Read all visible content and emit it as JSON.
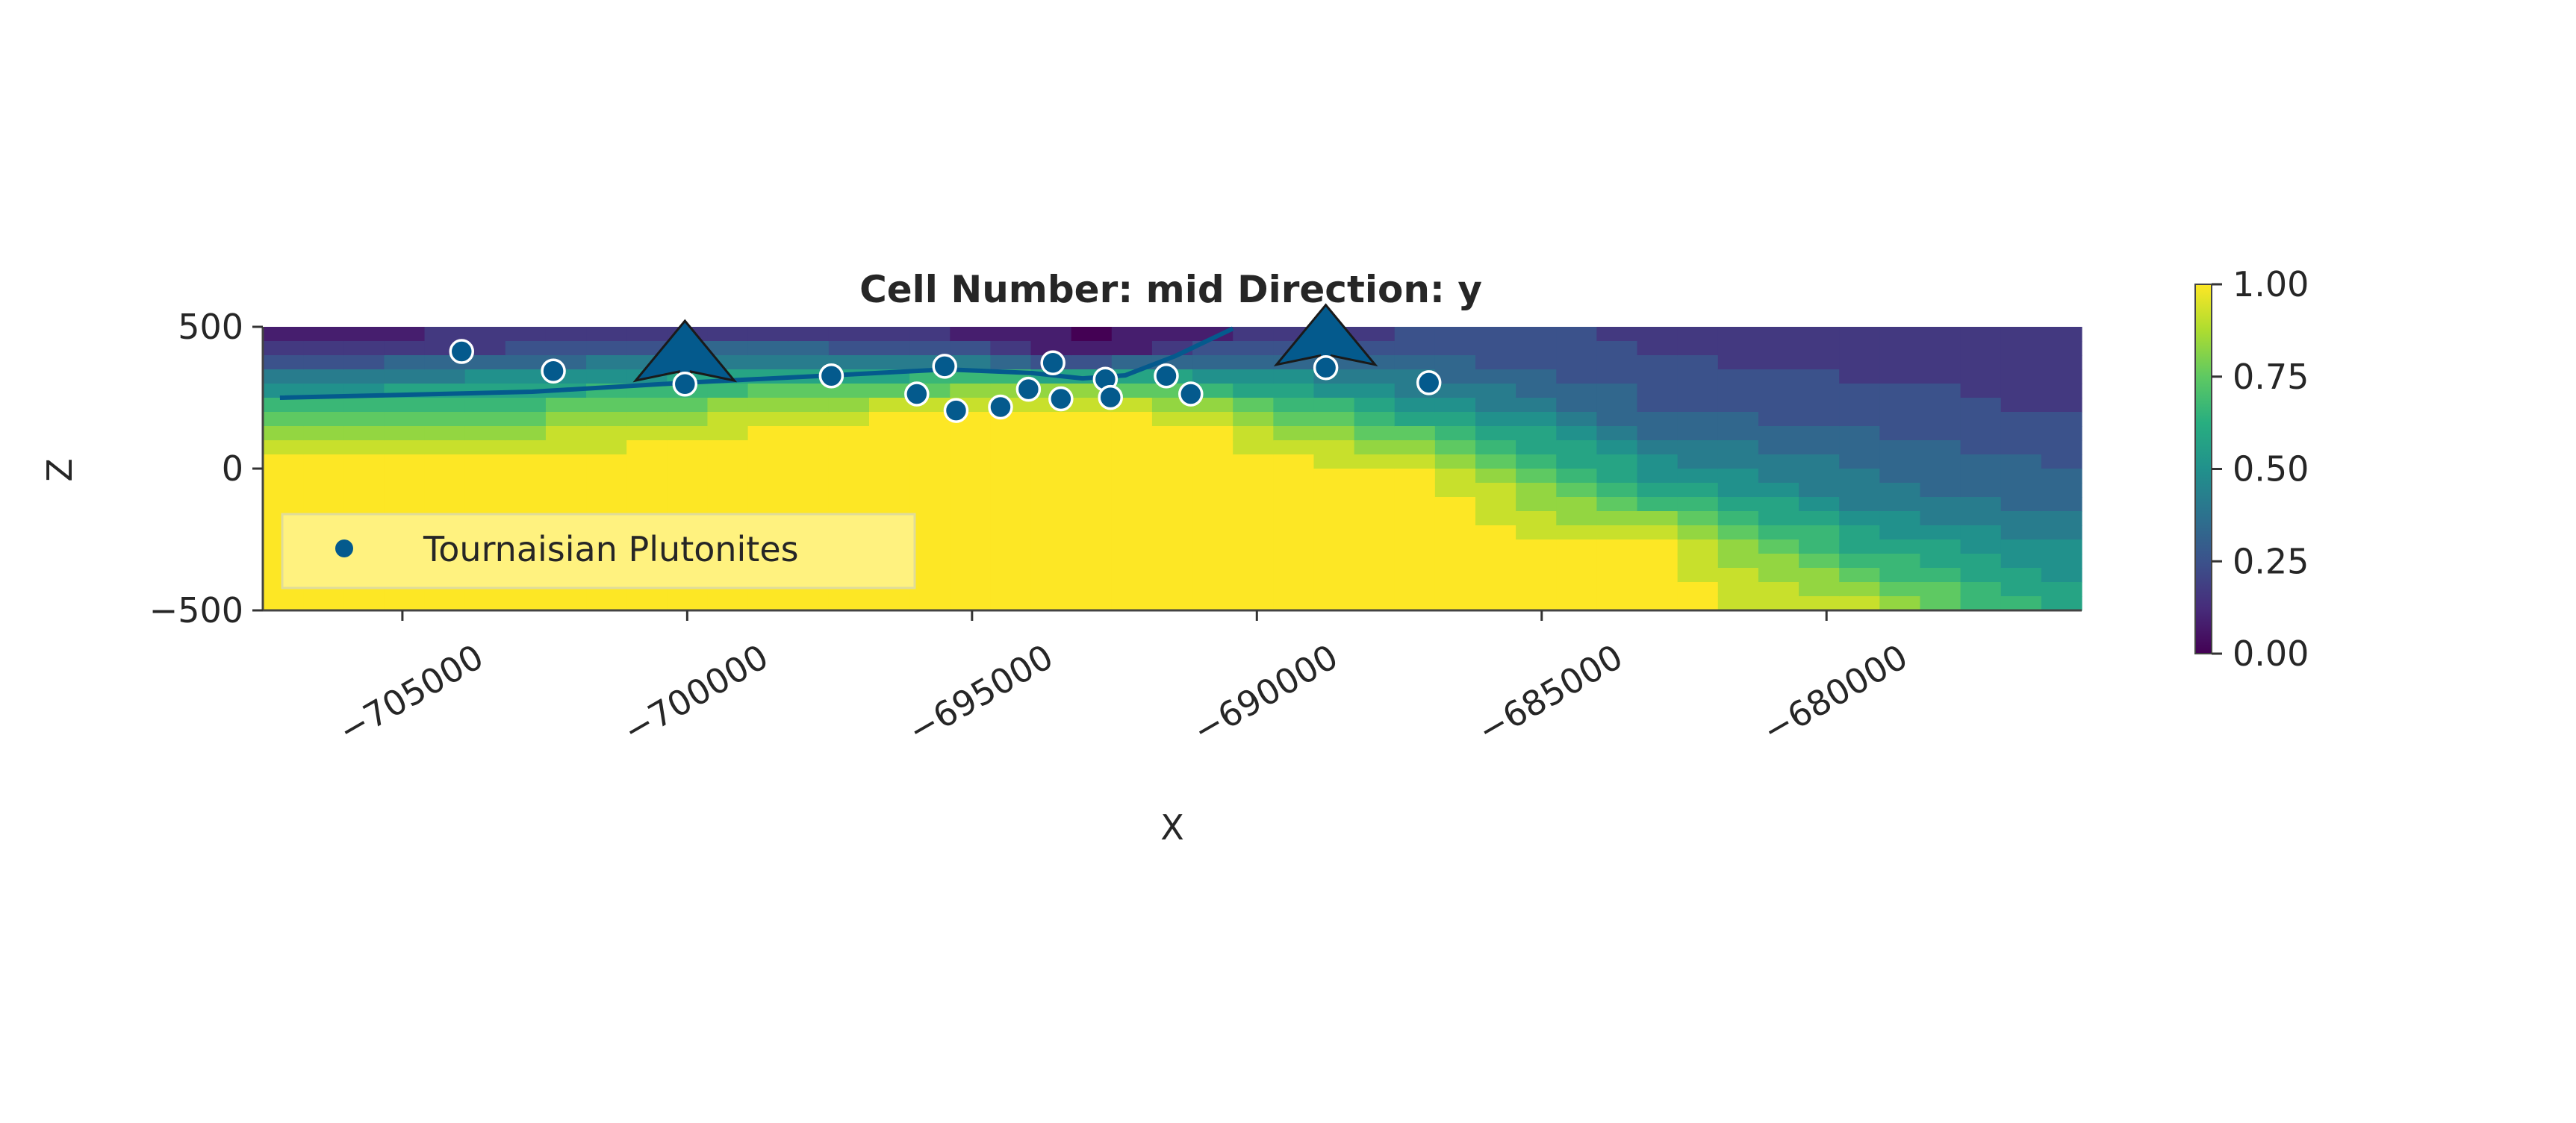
{
  "chart_data": {
    "type": "heatmap",
    "title": "Cell Number: mid Direction: y",
    "xlabel": "X",
    "ylabel": "Z",
    "xlim": [
      -707450,
      -675520
    ],
    "ylim": [
      -500,
      500
    ],
    "x_ticks": [
      -705000,
      -700000,
      -695000,
      -690000,
      -685000,
      -680000
    ],
    "x_tick_labels": [
      "−705000",
      "−700000",
      "−695000",
      "−690000",
      "−685000",
      "−680000"
    ],
    "y_ticks": [
      500,
      0,
      -500
    ],
    "y_tick_labels": [
      "500",
      "0",
      "−500"
    ],
    "grid": false,
    "colormap": "viridis",
    "colorbar": {
      "range": [
        0,
        1
      ],
      "ticks": [
        1.0,
        0.75,
        0.5,
        0.25,
        0.0
      ],
      "tick_labels": [
        "1.00",
        "0.75",
        "0.50",
        "0.25",
        "0.00"
      ]
    },
    "heatmap": {
      "x": [
        -707000,
        -703000,
        -699000,
        -695000,
        -693000,
        -691000,
        -687000,
        -683000,
        -679000,
        -676000
      ],
      "z": [
        500,
        400,
        300,
        200,
        100,
        0,
        -100,
        -200,
        -300,
        -400,
        -500
      ],
      "values_by_column": [
        [
          0.08,
          0.2,
          0.45,
          0.7,
          0.85,
          1,
          1,
          1,
          1,
          1,
          1
        ],
        [
          0.1,
          0.25,
          0.55,
          0.75,
          0.9,
          1,
          1,
          1,
          1,
          1,
          1
        ],
        [
          0.15,
          0.4,
          0.65,
          0.85,
          1,
          1,
          1,
          1,
          1,
          1,
          1
        ],
        [
          0.05,
          0.3,
          0.75,
          1,
          1,
          1,
          1,
          1,
          1,
          1,
          1
        ],
        [
          0.0,
          0.05,
          0.8,
          1,
          1,
          1,
          1,
          1,
          1,
          1,
          1
        ],
        [
          0.05,
          0.3,
          0.6,
          0.9,
          1,
          1,
          1,
          1,
          1,
          1,
          1
        ],
        [
          0.2,
          0.3,
          0.4,
          0.55,
          0.75,
          0.95,
          1,
          1,
          1,
          1,
          1
        ],
        [
          0.2,
          0.2,
          0.25,
          0.3,
          0.4,
          0.5,
          0.65,
          0.85,
          1,
          1,
          1
        ],
        [
          0.2,
          0.2,
          0.2,
          0.25,
          0.3,
          0.35,
          0.4,
          0.5,
          0.6,
          0.75,
          0.9
        ],
        [
          0.15,
          0.2,
          0.2,
          0.2,
          0.25,
          0.3,
          0.35,
          0.4,
          0.5,
          0.55,
          0.6
        ]
      ]
    },
    "series": [
      {
        "name": "Tournaisian Plutonites",
        "type": "scatter",
        "color": "#045a8d",
        "points": [
          [
            -703960,
            413
          ],
          [
            -702350,
            344
          ],
          [
            -700040,
            298
          ],
          [
            -697470,
            327
          ],
          [
            -695970,
            263
          ],
          [
            -695480,
            361
          ],
          [
            -695280,
            205
          ],
          [
            -694500,
            217
          ],
          [
            -694010,
            280
          ],
          [
            -693580,
            373
          ],
          [
            -693440,
            246
          ],
          [
            -692660,
            315
          ],
          [
            -692570,
            251
          ],
          [
            -691590,
            327
          ],
          [
            -691160,
            263
          ],
          [
            -688790,
            356
          ],
          [
            -686980,
            303
          ]
        ]
      },
      {
        "type": "line",
        "color": "#045a8d",
        "points": [
          [
            -707150,
            250
          ],
          [
            -702720,
            271
          ],
          [
            -700030,
            303
          ],
          [
            -697450,
            329
          ],
          [
            -695440,
            350
          ],
          [
            -693940,
            337
          ],
          [
            -693060,
            318
          ],
          [
            -692310,
            329
          ],
          [
            -691430,
            397
          ],
          [
            -690420,
            494
          ]
        ]
      },
      {
        "type": "orientations",
        "color": "#045a8d",
        "points": [
          [
            -700040,
            300
          ],
          [
            -688790,
            356
          ]
        ]
      }
    ],
    "legend": {
      "position": "lower-left",
      "entries": [
        "Tournaisian Plutonites"
      ]
    }
  }
}
